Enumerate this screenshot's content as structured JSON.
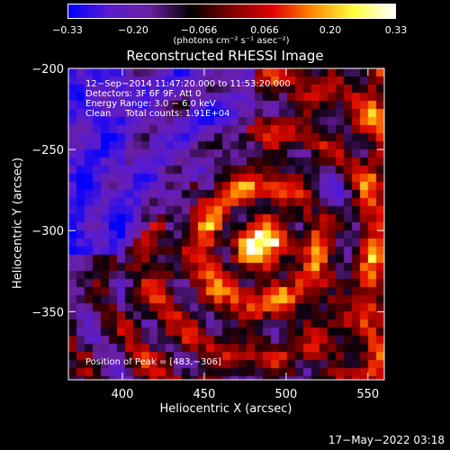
{
  "colorbar": {
    "ticks": [
      "−0.33",
      "−0.20",
      "−0.066",
      "0.066",
      "0.20",
      "0.33"
    ],
    "unit_label": "(photons cm⁻² s⁻¹ asec⁻²)",
    "gradient_stops": [
      "#0000ff",
      "#5a1cd0",
      "#6a1fa0",
      "#000000",
      "#800000",
      "#e00000",
      "#ff8c00",
      "#ffff40",
      "#ffffff"
    ]
  },
  "annotation": {
    "line1": "12−Sep−2014 11:47:20.000 to 11:53:20.000",
    "line2": "Detectors: 3F 6F 9F, Att 0",
    "line3": "Energy Range: 3.0 − 6.0 keV",
    "line4": "Clean     Total counts: 1.91E+04",
    "peak": "Position of Peak = [483,−306]"
  },
  "footer": "17−May−2022 03:18",
  "chart_data": {
    "type": "heatmap",
    "title": "Reconstructed RHESSI Image",
    "xlabel": "Heliocentric X (arcsec)",
    "ylabel": "Heliocentric Y (arcsec)",
    "xlim": [
      367,
      560
    ],
    "ylim": [
      -392,
      -200
    ],
    "xticks": [
      400,
      450,
      500,
      550
    ],
    "yticks": [
      -200,
      -250,
      -300,
      -350
    ],
    "xtick_labels": [
      "400",
      "450",
      "500",
      "550"
    ],
    "ytick_labels": [
      "−200",
      "−250",
      "−300",
      "−350"
    ],
    "colorbar_range": [
      -0.33,
      0.33
    ],
    "peak": [
      483,
      -306
    ],
    "peak_value": 0.33
  }
}
